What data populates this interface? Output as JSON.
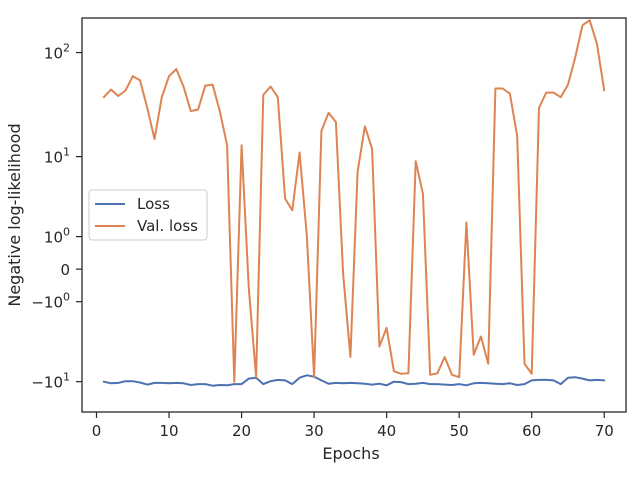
{
  "chart_data": {
    "type": "line",
    "title": "",
    "xlabel": "Epochs",
    "ylabel": "Negative log-likelihood",
    "yscale": "symlog",
    "xlim": [
      -2,
      73
    ],
    "ylim": [
      -20,
      210
    ],
    "xticks": [
      0,
      10,
      20,
      30,
      40,
      50,
      60,
      70
    ],
    "yticks": [
      {
        "value": -10,
        "base": "−10",
        "exp": "1"
      },
      {
        "value": -1,
        "base": "−10",
        "exp": "0"
      },
      {
        "value": 0,
        "base": "0",
        "exp": ""
      },
      {
        "value": 1,
        "base": "10",
        "exp": "0"
      },
      {
        "value": 10,
        "base": "10",
        "exp": "1"
      },
      {
        "value": 100,
        "base": "10",
        "exp": "2"
      }
    ],
    "grid": false,
    "legend_position": "center-left",
    "x": [
      1,
      2,
      3,
      4,
      5,
      6,
      7,
      8,
      9,
      10,
      11,
      12,
      13,
      14,
      15,
      16,
      17,
      18,
      19,
      20,
      21,
      22,
      23,
      24,
      25,
      26,
      27,
      28,
      29,
      30,
      31,
      32,
      33,
      34,
      35,
      36,
      37,
      38,
      39,
      40,
      41,
      42,
      43,
      44,
      45,
      46,
      47,
      48,
      49,
      50,
      51,
      52,
      53,
      54,
      55,
      56,
      57,
      58,
      59,
      60,
      61,
      62,
      63,
      64,
      65,
      66,
      67,
      68,
      69,
      70
    ],
    "series": [
      {
        "name": "Loss",
        "color": "#4c72b0",
        "values": [
          -10.0,
          -10.4,
          -10.3,
          -9.9,
          -9.9,
          -10.2,
          -10.7,
          -10.3,
          -10.3,
          -10.4,
          -10.3,
          -10.4,
          -10.8,
          -10.6,
          -10.6,
          -11.0,
          -10.8,
          -10.9,
          -10.6,
          -10.6,
          -9.3,
          -9.1,
          -10.6,
          -9.9,
          -9.6,
          -9.7,
          -10.6,
          -9.1,
          -8.6,
          -8.9,
          -9.7,
          -10.5,
          -10.3,
          -10.4,
          -10.3,
          -10.4,
          -10.5,
          -10.7,
          -10.5,
          -10.9,
          -10.0,
          -10.1,
          -10.6,
          -10.5,
          -10.3,
          -10.6,
          -10.6,
          -10.7,
          -10.8,
          -10.6,
          -10.9,
          -10.4,
          -10.3,
          -10.4,
          -10.5,
          -10.6,
          -10.4,
          -10.8,
          -10.6,
          -9.7,
          -9.6,
          -9.6,
          -9.7,
          -10.6,
          -9.1,
          -9.0,
          -9.3,
          -9.7,
          -9.6,
          -9.7
        ]
      },
      {
        "name": "Val. loss",
        "color": "#dd8452",
        "values": [
          38,
          45,
          39,
          44,
          60,
          55,
          30,
          15,
          38,
          60,
          70,
          48,
          28,
          29,
          49,
          50,
          28,
          13,
          -10,
          13,
          -0.5,
          -9,
          40,
          48,
          38,
          3.5,
          2.5,
          11,
          1,
          -9,
          18,
          27,
          22,
          -0.1,
          -5.5,
          7,
          20,
          12,
          -4.2,
          -2.5,
          -7.8,
          -8.3,
          -8.2,
          9,
          4,
          -8.5,
          -8.2,
          -5.5,
          -8.5,
          -9,
          1.7,
          -5.2,
          -3.2,
          -6.5,
          46,
          46,
          41,
          16,
          -6.5,
          -8.3,
          30,
          42,
          42,
          38,
          50,
          90,
          180,
          200,
          120,
          44
        ]
      }
    ]
  }
}
